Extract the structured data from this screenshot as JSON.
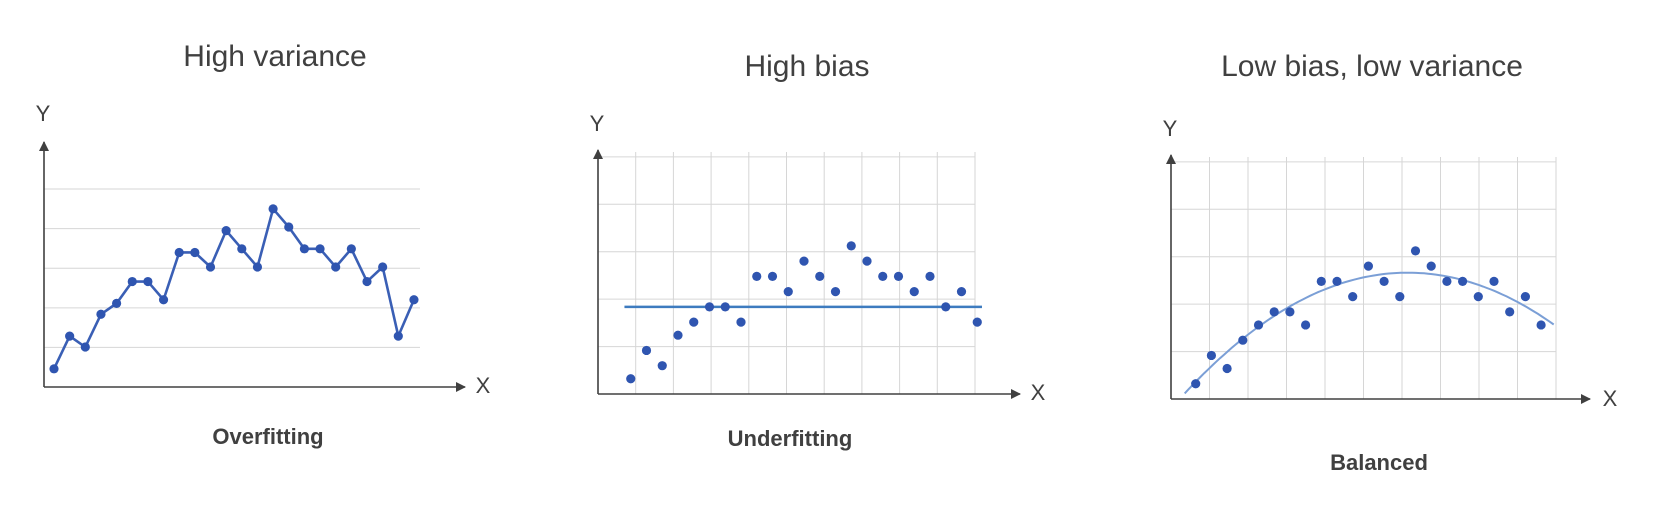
{
  "colors": {
    "point": "#2f55b0",
    "line": "#3a5fb5",
    "flat_fit": "#3d7bbf",
    "curve_fit": "#7b9fd6",
    "axis": "#404040",
    "grid": "#d6d6d6"
  },
  "chart_data": [
    {
      "type": "line",
      "title": "High variance",
      "caption": "Overfitting",
      "xlabel": "X",
      "ylabel": "Y",
      "grid": "horizontal",
      "xlim": [
        0,
        24
      ],
      "ylim": [
        0,
        10
      ],
      "x": [
        0,
        1,
        2,
        3,
        4,
        5,
        6,
        7,
        8,
        9,
        10,
        11,
        12,
        13,
        14,
        15,
        16,
        17,
        18,
        19,
        20,
        21,
        22,
        23
      ],
      "y": [
        1,
        2.8,
        2.2,
        4,
        4.6,
        5.8,
        5.8,
        4.8,
        7.4,
        7.4,
        6.6,
        8.6,
        7.6,
        6.6,
        9.8,
        8.8,
        7.6,
        7.6,
        6.6,
        7.6,
        5.8,
        6.6,
        2.8,
        4.8
      ]
    },
    {
      "type": "scatter",
      "title": "High bias",
      "caption": "Underfitting",
      "xlabel": "X",
      "ylabel": "Y",
      "grid": "both",
      "xlim": [
        0,
        24
      ],
      "ylim": [
        0,
        10
      ],
      "fit": {
        "type": "horizontal",
        "y": 4
      },
      "x": [
        1,
        2,
        3,
        4,
        5,
        6,
        7,
        8,
        9,
        10,
        11,
        12,
        13,
        14,
        15,
        16,
        17,
        18,
        19,
        20,
        21,
        22,
        23
      ],
      "y": [
        0.7,
        2,
        1.3,
        2.7,
        3.3,
        4,
        4,
        3.3,
        5.4,
        5.4,
        4.7,
        6.1,
        5.4,
        4.7,
        6.8,
        6.1,
        5.4,
        5.4,
        4.7,
        5.4,
        4,
        4.7,
        3.3
      ]
    },
    {
      "type": "scatter",
      "title": "Low bias, low variance",
      "caption": "Balanced",
      "xlabel": "X",
      "ylabel": "Y",
      "grid": "both",
      "xlim": [
        0,
        24
      ],
      "ylim": [
        0,
        10
      ],
      "fit": {
        "type": "quadratic",
        "vertex_x": 14.5,
        "vertex_y": 5.8,
        "a": -0.0275
      },
      "x": [
        1,
        2,
        3,
        4,
        5,
        6,
        7,
        8,
        9,
        10,
        11,
        12,
        13,
        14,
        15,
        16,
        17,
        18,
        19,
        20,
        21,
        22,
        23
      ],
      "y": [
        0.7,
        2,
        1.4,
        2.7,
        3.4,
        4,
        4,
        3.4,
        5.4,
        5.4,
        4.7,
        6.1,
        5.4,
        4.7,
        6.8,
        6.1,
        5.4,
        5.4,
        4.7,
        5.4,
        4,
        4.7,
        3.4
      ]
    }
  ]
}
